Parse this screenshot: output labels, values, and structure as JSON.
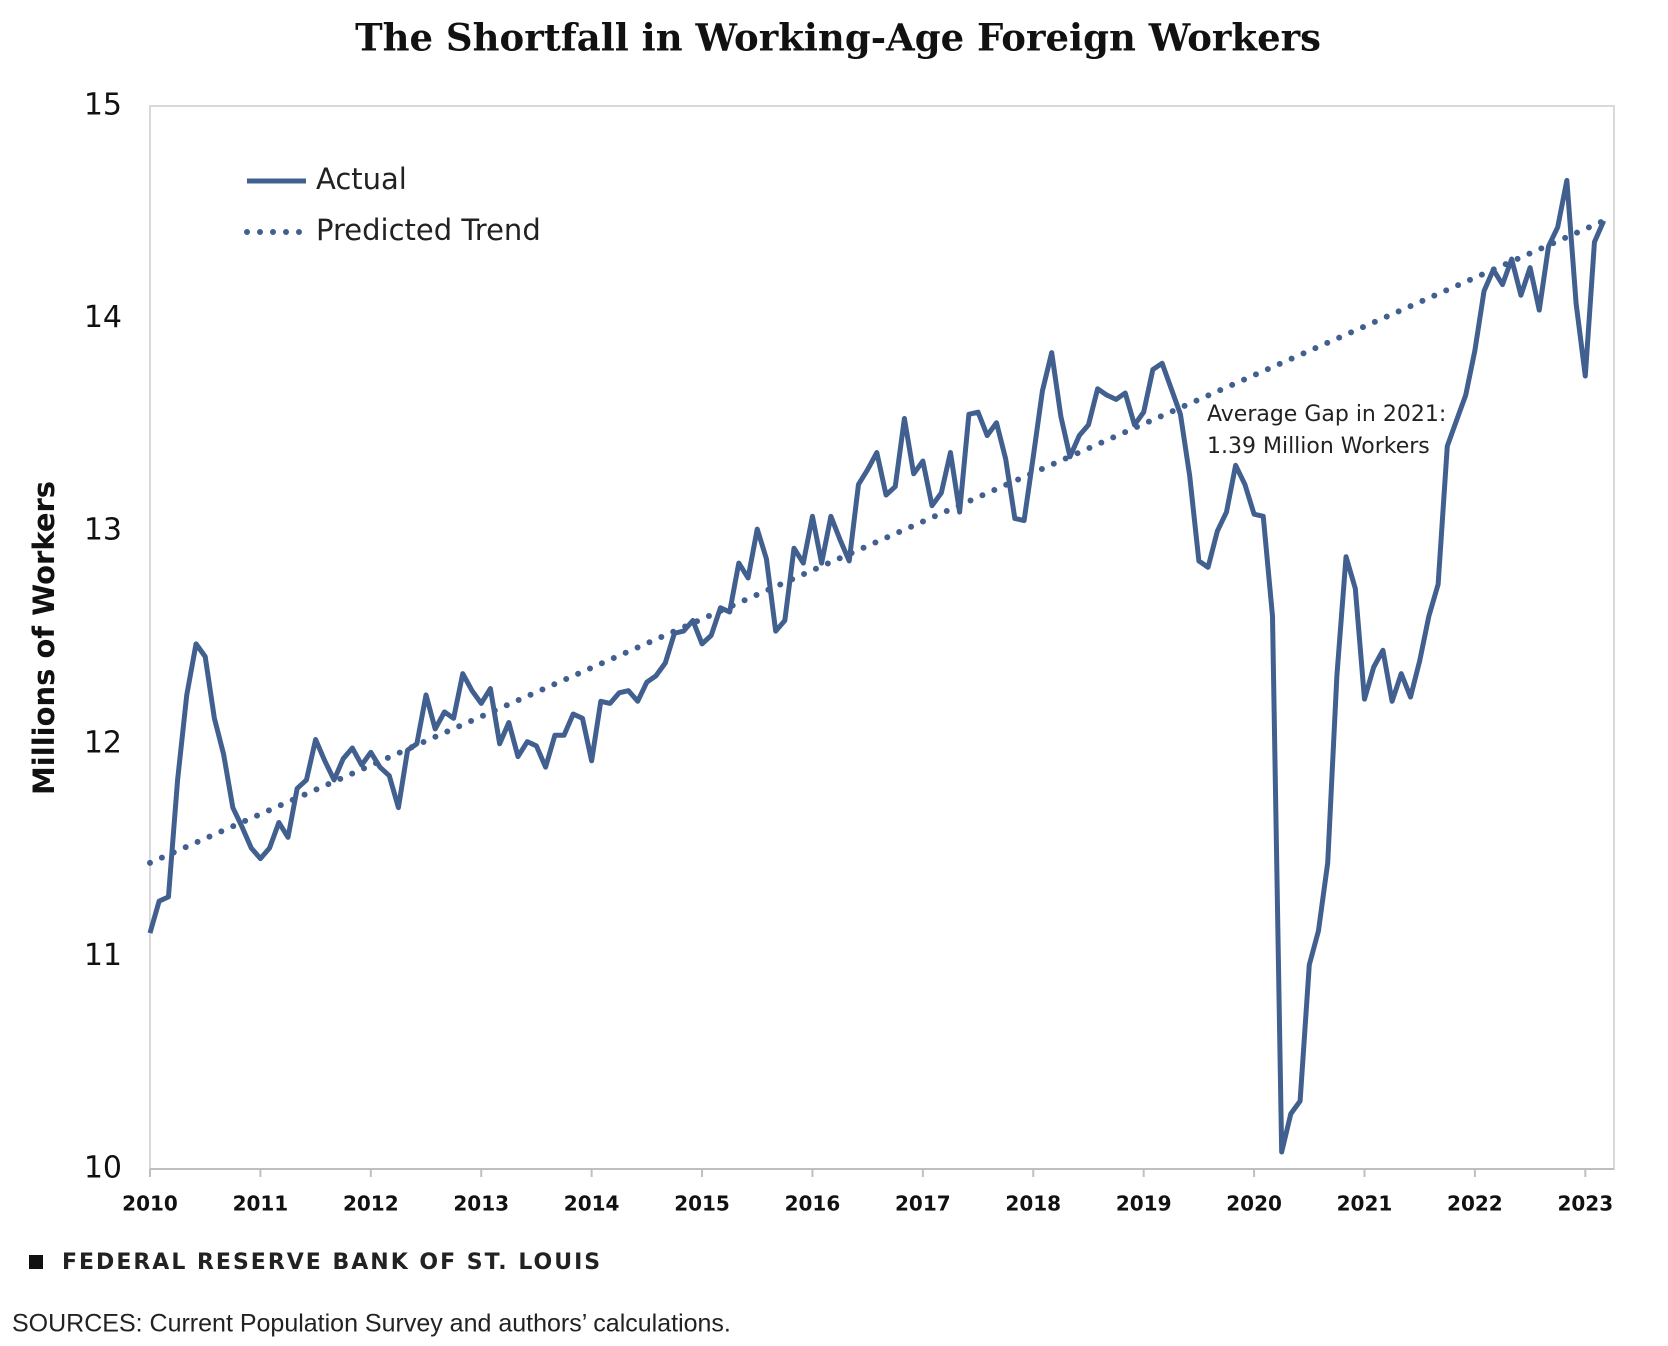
{
  "chart_data": {
    "type": "line",
    "title": "The Shortfall in Working-Age Foreign Workers",
    "y_label": "Millions of Workers",
    "xlim": [
      2010,
      2023.26
    ],
    "xticks": [
      2010,
      2011,
      2012,
      2013,
      2014,
      2015,
      2016,
      2017,
      2018,
      2019,
      2020,
      2021,
      2022,
      2023
    ],
    "ylim": [
      10,
      15
    ],
    "yticks": [
      10,
      11,
      12,
      13,
      14,
      15
    ],
    "grid": false,
    "legend": "upper left",
    "annotation": [
      "Average Gap in 2021:",
      "1.39 Million Workers"
    ],
    "series": [
      {
        "name": "Actual",
        "color": "#41608f",
        "style": "solid",
        "x": [
          2010.0,
          2010.083,
          2010.167,
          2010.25,
          2010.333,
          2010.417,
          2010.5,
          2010.583,
          2010.667,
          2010.75,
          2010.833,
          2010.917,
          2011.0,
          2011.083,
          2011.167,
          2011.25,
          2011.333,
          2011.417,
          2011.5,
          2011.583,
          2011.667,
          2011.75,
          2011.833,
          2011.917,
          2012.0,
          2012.083,
          2012.167,
          2012.25,
          2012.333,
          2012.417,
          2012.5,
          2012.583,
          2012.667,
          2012.75,
          2012.833,
          2012.917,
          2013.0,
          2013.083,
          2013.167,
          2013.25,
          2013.333,
          2013.417,
          2013.5,
          2013.583,
          2013.667,
          2013.75,
          2013.833,
          2013.917,
          2014.0,
          2014.083,
          2014.167,
          2014.25,
          2014.333,
          2014.417,
          2014.5,
          2014.583,
          2014.667,
          2014.75,
          2014.833,
          2014.917,
          2015.0,
          2015.083,
          2015.167,
          2015.25,
          2015.333,
          2015.417,
          2015.5,
          2015.583,
          2015.667,
          2015.75,
          2015.833,
          2015.917,
          2016.0,
          2016.083,
          2016.167,
          2016.25,
          2016.333,
          2016.417,
          2016.5,
          2016.583,
          2016.667,
          2016.75,
          2016.833,
          2016.917,
          2017.0,
          2017.083,
          2017.167,
          2017.25,
          2017.333,
          2017.417,
          2017.5,
          2017.583,
          2017.667,
          2017.75,
          2017.833,
          2017.917,
          2018.0,
          2018.083,
          2018.167,
          2018.25,
          2018.333,
          2018.417,
          2018.5,
          2018.583,
          2018.667,
          2018.75,
          2018.833,
          2018.917,
          2019.0,
          2019.083,
          2019.167,
          2019.25,
          2019.333,
          2019.417,
          2019.5,
          2019.583,
          2019.667,
          2019.75,
          2019.833,
          2019.917,
          2020.0,
          2020.083,
          2020.167,
          2020.25,
          2020.333,
          2020.417,
          2020.5,
          2020.583,
          2020.667,
          2020.75,
          2020.833,
          2020.917,
          2021.0,
          2021.083,
          2021.167,
          2021.25,
          2021.333,
          2021.417,
          2021.5,
          2021.583,
          2021.667,
          2021.75,
          2021.833,
          2021.917,
          2022.0,
          2022.083,
          2022.167,
          2022.25,
          2022.333,
          2022.417,
          2022.5,
          2022.583,
          2022.667,
          2022.75,
          2022.833,
          2022.917,
          2023.0,
          2023.083,
          2023.167
        ],
        "values": [
          11.11,
          11.26,
          11.28,
          11.83,
          12.23,
          12.47,
          12.41,
          12.12,
          11.95,
          11.7,
          11.61,
          11.51,
          11.46,
          11.51,
          11.63,
          11.56,
          11.79,
          11.83,
          12.02,
          11.92,
          11.83,
          11.93,
          11.98,
          11.9,
          11.96,
          11.89,
          11.85,
          11.7,
          11.97,
          12.0,
          12.23,
          12.07,
          12.15,
          12.12,
          12.33,
          12.25,
          12.19,
          12.26,
          12.0,
          12.1,
          11.94,
          12.01,
          11.99,
          11.89,
          12.04,
          12.04,
          12.14,
          12.12,
          11.92,
          12.2,
          12.19,
          12.24,
          12.25,
          12.2,
          12.29,
          12.32,
          12.38,
          12.52,
          12.53,
          12.58,
          12.47,
          12.51,
          12.64,
          12.62,
          12.85,
          12.78,
          13.01,
          12.87,
          12.53,
          12.58,
          12.92,
          12.85,
          13.07,
          12.85,
          13.07,
          12.96,
          12.86,
          13.22,
          13.29,
          13.37,
          13.17,
          13.21,
          13.53,
          13.27,
          13.33,
          13.12,
          13.18,
          13.37,
          13.09,
          13.55,
          13.56,
          13.45,
          13.51,
          13.34,
          13.06,
          13.05,
          13.35,
          13.66,
          13.84,
          13.54,
          13.35,
          13.45,
          13.5,
          13.67,
          13.64,
          13.62,
          13.65,
          13.5,
          13.56,
          13.76,
          13.79,
          13.67,
          13.55,
          13.26,
          12.86,
          12.83,
          13.0,
          13.09,
          13.31,
          13.22,
          13.08,
          13.07,
          12.6,
          10.08,
          10.26,
          10.32,
          10.96,
          11.12,
          11.44,
          12.32,
          12.88,
          12.73,
          12.21,
          12.36,
          12.44,
          12.2,
          12.33,
          12.22,
          12.39,
          12.6,
          12.75,
          13.4,
          13.52,
          13.64,
          13.85,
          14.13,
          14.23,
          14.16,
          14.28,
          14.11,
          14.24,
          14.04,
          14.34,
          14.43,
          14.65,
          14.07,
          13.73,
          14.36,
          14.46
        ]
      },
      {
        "name": "Predicted Trend",
        "color": "#41608f",
        "style": "dotted",
        "x": [
          2010.0,
          2023.167
        ],
        "values": [
          11.44,
          14.46
        ]
      }
    ]
  },
  "footer": {
    "org": "FEDERAL RESERVE BANK OF ST. LOUIS",
    "sources": "SOURCES: Current Population Survey and authors’ calculations."
  }
}
